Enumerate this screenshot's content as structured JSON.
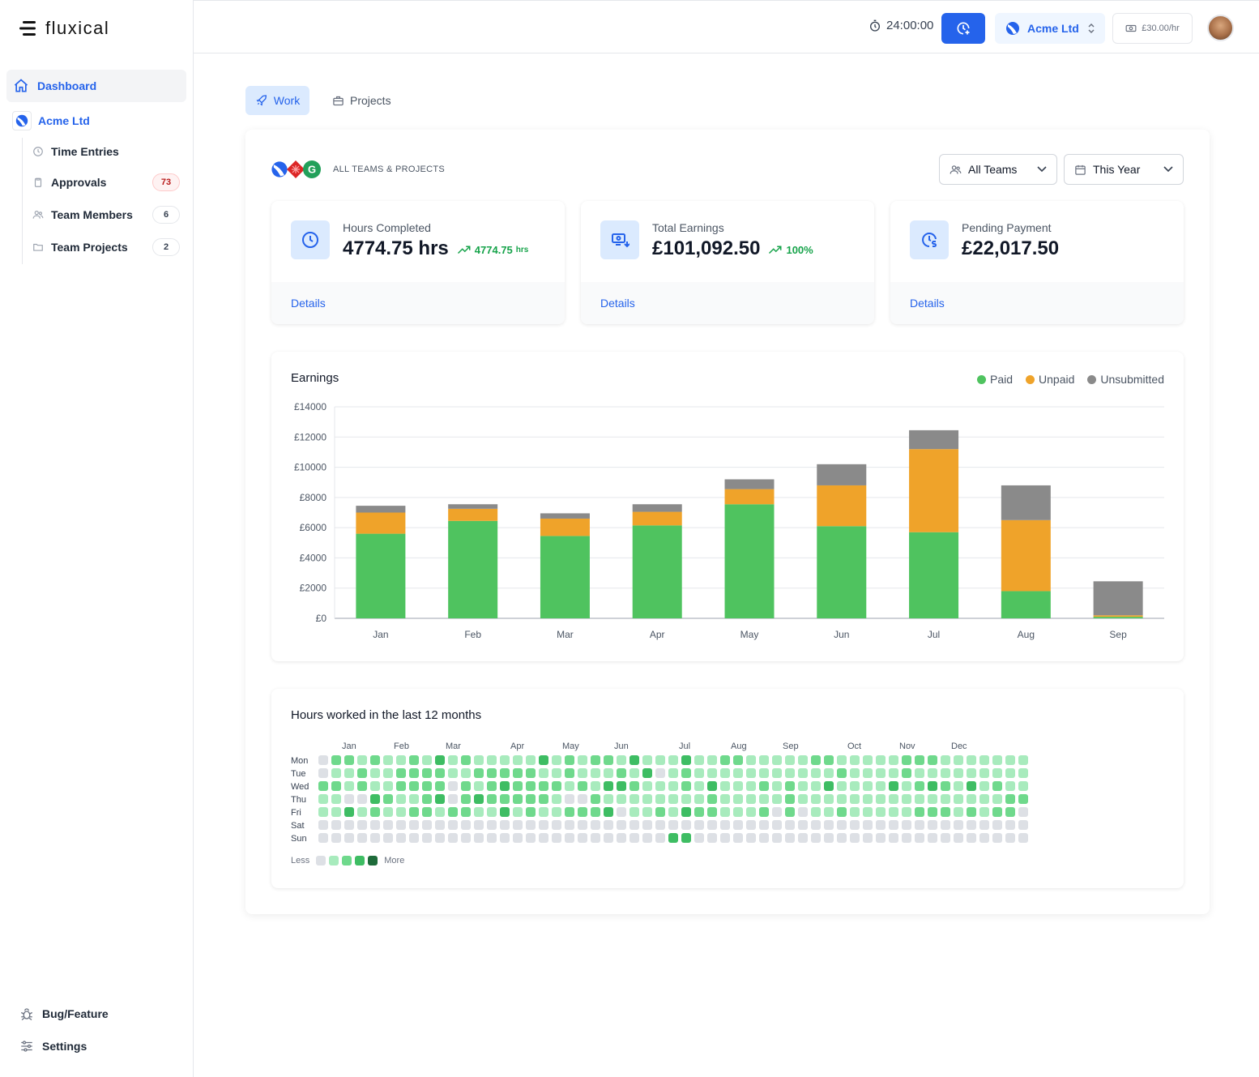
{
  "app": {
    "name": "fluxical"
  },
  "sidebar": {
    "dashboard": "Dashboard",
    "team": "Acme Ltd",
    "items": [
      {
        "label": "Time Entries",
        "icon": "clock-icon",
        "badge": ""
      },
      {
        "label": "Approvals",
        "icon": "clipboard-icon",
        "badge": "73"
      },
      {
        "label": "Team Members",
        "icon": "users-icon",
        "badge": "6"
      },
      {
        "label": "Team Projects",
        "icon": "folder-icon",
        "badge": "2"
      }
    ],
    "bottom": [
      {
        "label": "Bug/Feature",
        "icon": "bug-icon"
      },
      {
        "label": "Settings",
        "icon": "sliders-icon"
      }
    ]
  },
  "topbar": {
    "timer": "24:00:00",
    "team": "Acme Ltd",
    "rate": "£30.00/hr"
  },
  "tabs": [
    {
      "label": "Work",
      "active": true
    },
    {
      "label": "Projects",
      "active": false
    }
  ],
  "scope": {
    "label": "ALL TEAMS & PROJECTS",
    "badge_letter": "G"
  },
  "filters": {
    "teams": "All Teams",
    "period": "This Year"
  },
  "stats": [
    {
      "label": "Hours Completed",
      "value": "4774.75 hrs",
      "trend": "4774.75",
      "trend_unit": "hrs",
      "link": "Details"
    },
    {
      "label": "Total Earnings",
      "value": "£101,092.50",
      "trend": "100%",
      "trend_unit": "",
      "link": "Details"
    },
    {
      "label": "Pending Payment",
      "value": "£22,017.50",
      "trend": "",
      "trend_unit": "",
      "link": "Details"
    }
  ],
  "colors": {
    "accent": "#2563eb",
    "paid": "#4fc35f",
    "unpaid": "#efa32a",
    "unsubmitted": "#8a8a8a",
    "heat": [
      "#dde0e5",
      "#a8ebbd",
      "#6fd98c",
      "#3ebd63",
      "#1e6b3a"
    ]
  },
  "chart_data": {
    "type": "bar",
    "stacked": true,
    "title": "Earnings",
    "categories": [
      "Jan",
      "Feb",
      "Mar",
      "Apr",
      "May",
      "Jun",
      "Jul",
      "Aug",
      "Sep"
    ],
    "series": [
      {
        "name": "Paid",
        "values": [
          5600,
          6450,
          5450,
          6150,
          7550,
          6100,
          5700,
          1800,
          100
        ]
      },
      {
        "name": "Unpaid",
        "values": [
          1400,
          800,
          1150,
          900,
          1000,
          2700,
          5500,
          4700,
          100
        ]
      },
      {
        "name": "Unsubmitted",
        "values": [
          450,
          300,
          350,
          500,
          650,
          1400,
          1250,
          2300,
          2250
        ]
      }
    ],
    "ylim": [
      0,
      14000
    ],
    "yticks": [
      "£0",
      "£2000",
      "£4000",
      "£6000",
      "£8000",
      "£10000",
      "£12000",
      "£14000"
    ],
    "grid": true,
    "legend_position": "top-right"
  },
  "heatmap": {
    "title": "Hours worked in the last 12 months",
    "months": [
      "Jan",
      "Feb",
      "Mar",
      "Apr",
      "May",
      "Jun",
      "Jul",
      "Aug",
      "Sep",
      "Oct",
      "Nov",
      "Dec"
    ],
    "month_week_index": [
      2,
      6,
      10,
      15,
      19,
      23,
      28,
      32,
      36,
      41,
      45,
      49
    ],
    "days": [
      "Mon",
      "Tue",
      "Wed",
      "Thu",
      "Fri",
      "Sat",
      "Sun"
    ],
    "levels": [
      "0221211213121111131212213111311221111122111112221111111",
      "0112112222112222211211121301211111111111211112111111111",
      "2212112222021232222121332111213111212113111131232131211",
      "1100321123023222221002111111112111112111111111111111122",
      "1131211221221131211222301121322111202011211111222121220",
      "0000000000000000000000000000000000000000000000000000000",
      "0000000000000000000000000003300000000000000000000000000"
    ],
    "less": "Less",
    "more": "More"
  }
}
